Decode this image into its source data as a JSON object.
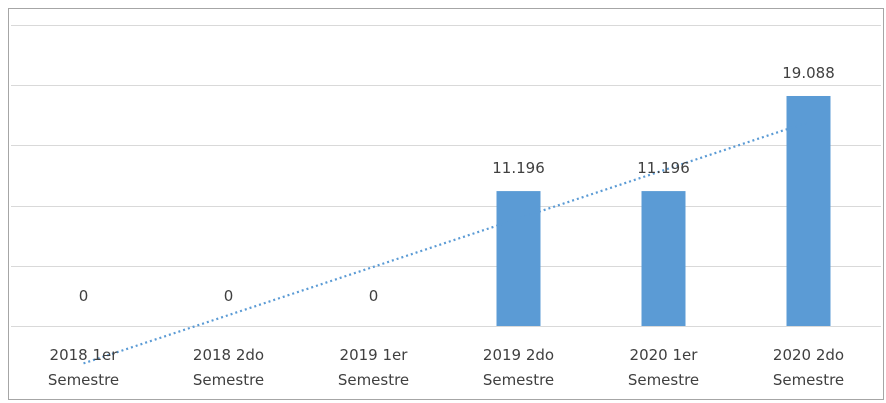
{
  "chart_data": {
    "type": "bar",
    "categories": [
      [
        "2018 1er",
        "Semestre"
      ],
      [
        "2018 2do",
        "Semestre"
      ],
      [
        "2019 1er",
        "Semestre"
      ],
      [
        "2019 2do",
        "Semestre"
      ],
      [
        "2020 1er",
        "Semestre"
      ],
      [
        "2020 2do",
        "Semestre"
      ]
    ],
    "values": [
      0,
      0,
      0,
      11.196,
      11.196,
      19.088
    ],
    "data_labels": [
      "0",
      "0",
      "0",
      "11.196",
      "11.196",
      "19.088"
    ],
    "title": "",
    "xlabel": "",
    "ylabel": "",
    "ylim": [
      0,
      25
    ],
    "y_axis_labels_shown": false,
    "grid": true,
    "trendline": {
      "type": "linear",
      "style": "dotted"
    },
    "colors": {
      "bar": "#5b9bd5",
      "trendline": "#5b9bd5",
      "gridline": "#d9d9d9",
      "frame": "#a6a6a6",
      "text": "#404040"
    }
  }
}
